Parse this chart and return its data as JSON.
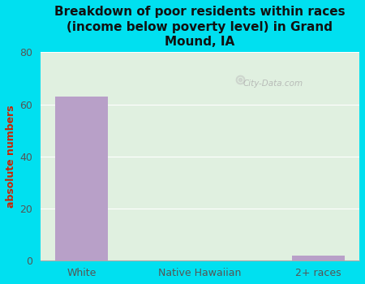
{
  "title": "Breakdown of poor residents within races\n(income below poverty level) in Grand\nMound, IA",
  "categories": [
    "White",
    "Native Hawaiian",
    "2+ races"
  ],
  "values": [
    63,
    0,
    2
  ],
  "bar_color": "#b8a0c8",
  "ylabel": "absolute numbers",
  "ylim": [
    0,
    80
  ],
  "yticks": [
    0,
    20,
    40,
    60,
    80
  ],
  "background_outer": "#00e0f0",
  "background_inner": "#e0f0e0",
  "watermark": "City-Data.com",
  "title_fontsize": 11,
  "axis_fontsize": 9,
  "tick_fontsize": 9,
  "ylabel_color": "#cc2200",
  "tick_color": "#555555",
  "title_color": "#111111",
  "grid_color": "#ffffff",
  "bar_width": 0.45
}
